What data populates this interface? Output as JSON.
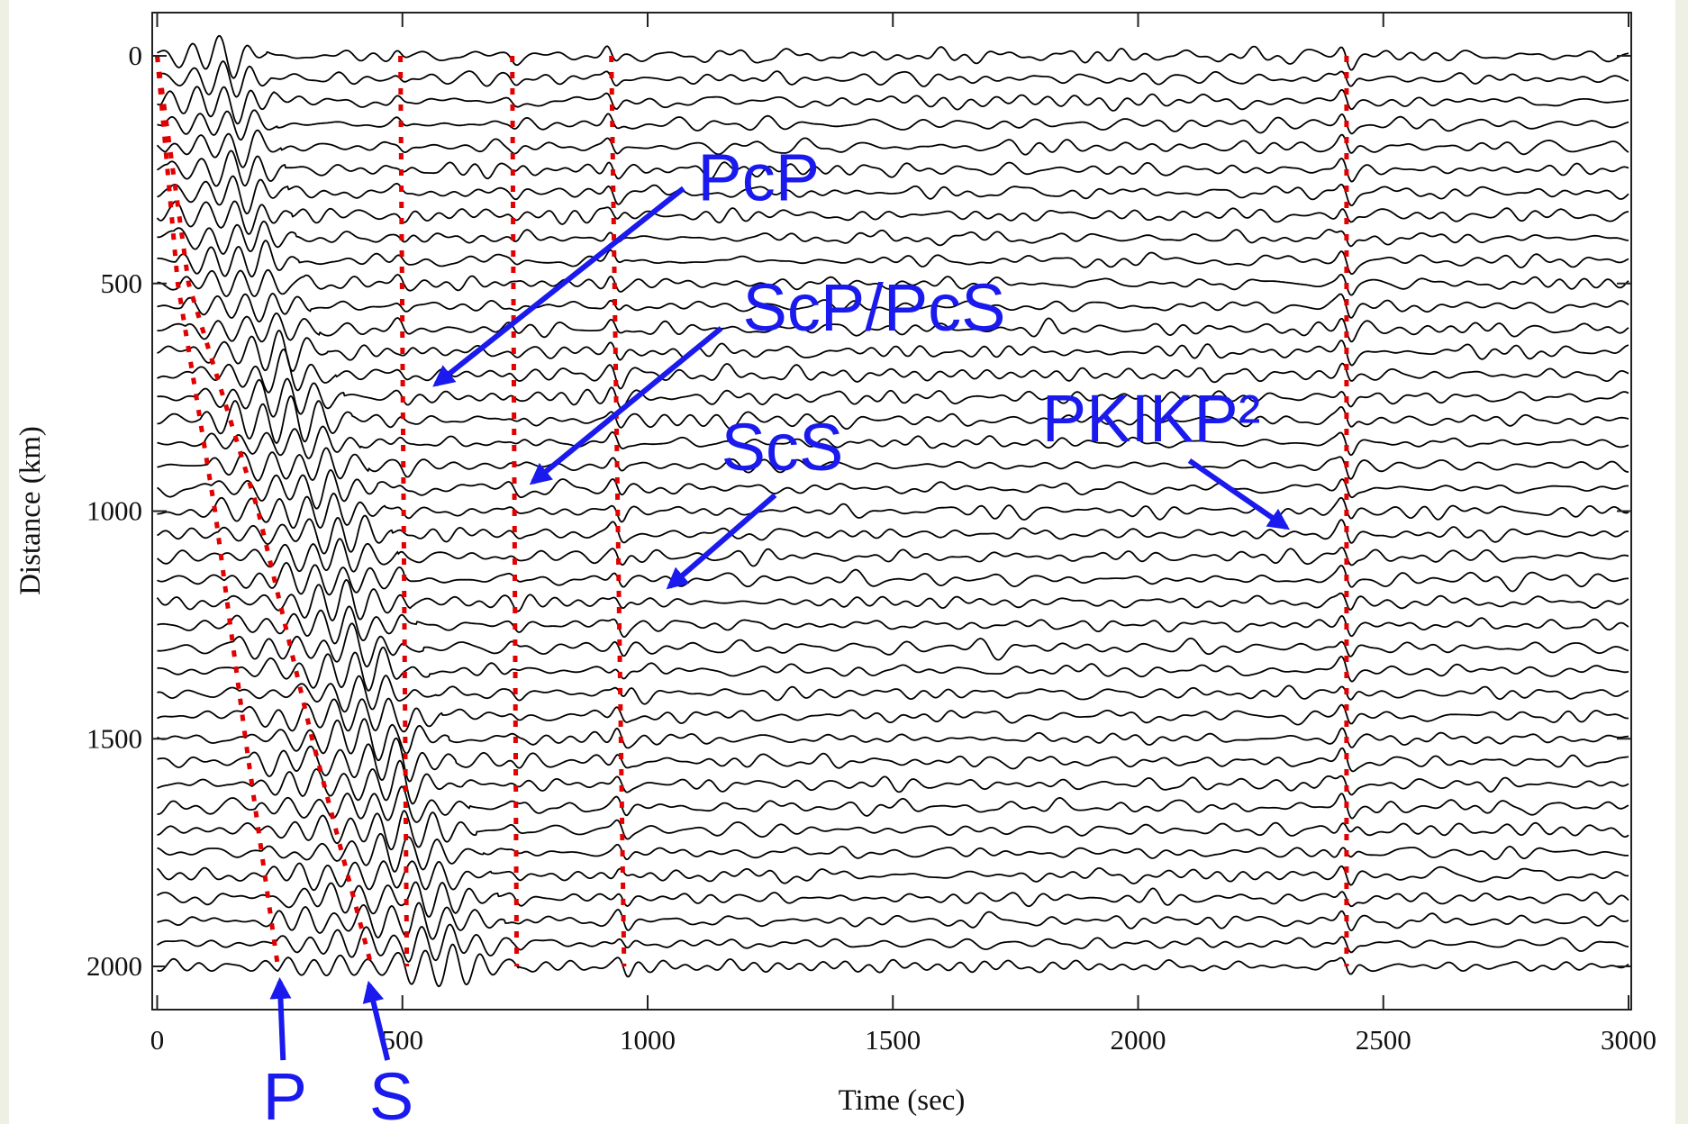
{
  "chart_data": {
    "type": "record-section",
    "xlabel": "Time (sec)",
    "ylabel": "Distance (km)",
    "xlim": [
      0,
      3000
    ],
    "ylim": [
      2000,
      0
    ],
    "xticks": [
      0,
      500,
      1000,
      1500,
      2000,
      2500,
      3000
    ],
    "yticks": [
      0,
      500,
      1000,
      1500,
      2000
    ],
    "trace_color": "#000000",
    "trace_distances": [
      0,
      50,
      100,
      150,
      200,
      250,
      300,
      350,
      400,
      450,
      500,
      550,
      600,
      650,
      700,
      750,
      800,
      850,
      900,
      950,
      1000,
      1050,
      1100,
      1150,
      1200,
      1250,
      1300,
      1350,
      1400,
      1450,
      1500,
      1550,
      1600,
      1650,
      1700,
      1750,
      1800,
      1850,
      1900,
      1950,
      2000
    ],
    "phase_curves": [
      {
        "color": "#e00000",
        "x": [
          0,
          42,
          118,
          180,
          246
        ],
        "y": [
          0,
          500,
          1000,
          1500,
          2000
        ]
      },
      {
        "color": "#e00000",
        "x": [
          0,
          64,
          206,
          316,
          437
        ],
        "y": [
          0,
          500,
          1000,
          1500,
          2000
        ]
      },
      {
        "color": "#e00000",
        "x": [
          496,
          509
        ],
        "y": [
          0,
          2000
        ]
      },
      {
        "color": "#e00000",
        "x": [
          724,
          733
        ],
        "y": [
          0,
          2000
        ]
      },
      {
        "color": "#e00000",
        "x": [
          926,
          952
        ],
        "y": [
          0,
          2000
        ]
      },
      {
        "color": "#e00000",
        "x": [
          2425,
          2425
        ],
        "y": [
          0,
          2000
        ]
      }
    ],
    "annotations": [
      "PcP",
      "ScP/PcS",
      "ScS",
      "PKIKP²",
      "P",
      "S"
    ]
  }
}
